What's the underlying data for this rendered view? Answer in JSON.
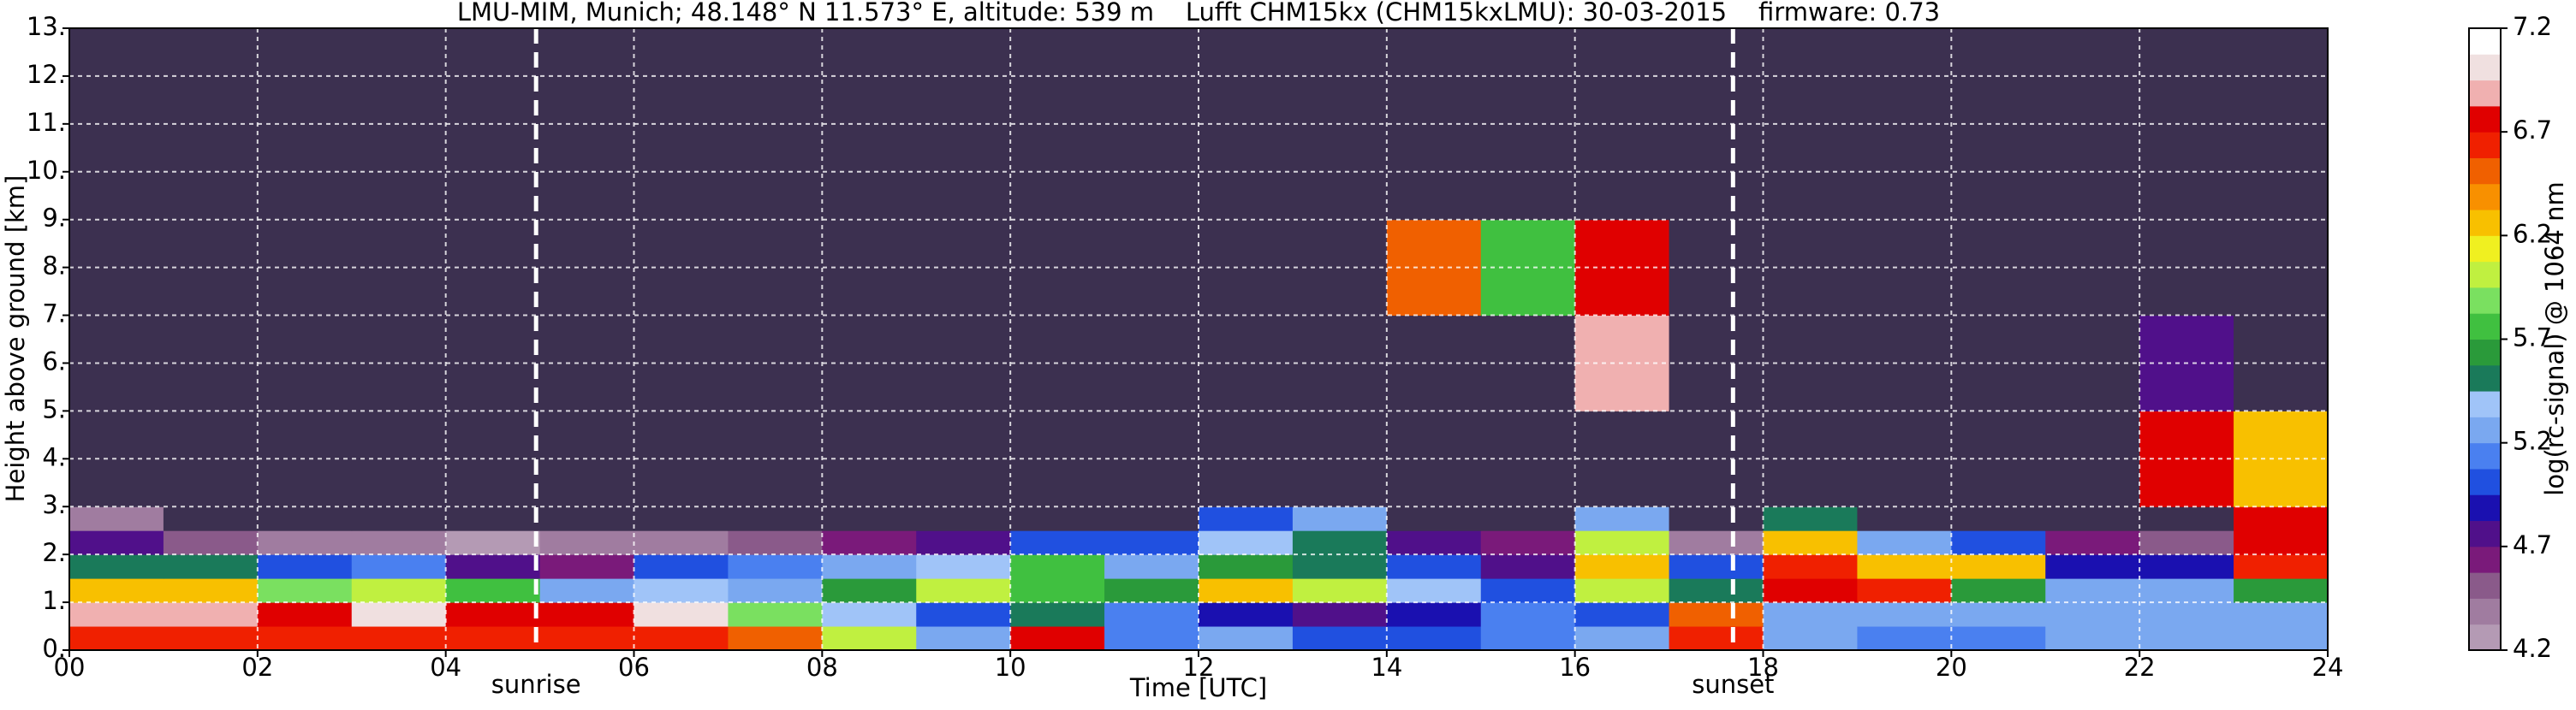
{
  "chart_data": {
    "type": "heatmap",
    "title": "LMU-MIM, Munich; 48.148° N 11.573° E, altitude: 539 m    Lufft CHM15kx (CHM15kxLMU): 30-03-2015    firmware: 0.73",
    "x_label": "Time [UTC]",
    "y_label": "Height above ground [km]",
    "colorbar_label": "log(rc-signal) @ 1064 nm",
    "xlim": [
      0,
      24
    ],
    "xticks": [
      {
        "value": 0,
        "label": "00"
      },
      {
        "value": 2,
        "label": "02"
      },
      {
        "value": 4,
        "label": "04"
      },
      {
        "value": 6,
        "label": "06"
      },
      {
        "value": 8,
        "label": "08"
      },
      {
        "value": 10,
        "label": "10"
      },
      {
        "value": 12,
        "label": "12"
      },
      {
        "value": 14,
        "label": "14"
      },
      {
        "value": 16,
        "label": "16"
      },
      {
        "value": 18,
        "label": "18"
      },
      {
        "value": 20,
        "label": "20"
      },
      {
        "value": 22,
        "label": "22"
      },
      {
        "value": 24,
        "label": "24"
      }
    ],
    "ylim": [
      0,
      13
    ],
    "yticks": [
      {
        "value": 0,
        "label": "0."
      },
      {
        "value": 1,
        "label": "1."
      },
      {
        "value": 2,
        "label": "2."
      },
      {
        "value": 3,
        "label": "3."
      },
      {
        "value": 4,
        "label": "4."
      },
      {
        "value": 5,
        "label": "5."
      },
      {
        "value": 6,
        "label": "6."
      },
      {
        "value": 7,
        "label": "7."
      },
      {
        "value": 8,
        "label": "8."
      },
      {
        "value": 9,
        "label": "9."
      },
      {
        "value": 10,
        "label": "10."
      },
      {
        "value": 11,
        "label": "11."
      },
      {
        "value": 12,
        "label": "12."
      },
      {
        "value": 13,
        "label": "13."
      }
    ],
    "grid": true,
    "markers": [
      {
        "label": "sunrise",
        "value": 4.96
      },
      {
        "label": "sunset",
        "value": 17.68
      }
    ],
    "x_bins": [
      0,
      1,
      2,
      3,
      4,
      5,
      6,
      7,
      8,
      9,
      10,
      11,
      12,
      13,
      14,
      15,
      16,
      17,
      18,
      19,
      20,
      21,
      22,
      23,
      24
    ],
    "y_bins": [
      0,
      0.5,
      1,
      1.5,
      2,
      2.5,
      3,
      5,
      7,
      9,
      13
    ],
    "z": [
      [
        6.6,
        6.6,
        6.6,
        6.6,
        6.6,
        6.6,
        6.6,
        6.5,
        6.0,
        5.3,
        6.8,
        5.1,
        5.2,
        5.0,
        5.0,
        5.1,
        5.2,
        6.6,
        5.2,
        5.1,
        5.1,
        5.2,
        5.2,
        5.2
      ],
      [
        6.9,
        6.9,
        6.8,
        7.0,
        6.7,
        6.8,
        7.0,
        5.9,
        5.4,
        5.0,
        5.5,
        5.1,
        4.9,
        4.8,
        4.9,
        5.1,
        5.0,
        6.5,
        5.3,
        5.2,
        5.2,
        5.3,
        5.2,
        5.3
      ],
      [
        6.3,
        6.2,
        5.9,
        6.0,
        5.8,
        5.3,
        5.4,
        5.3,
        5.6,
        6.0,
        5.8,
        5.6,
        6.2,
        6.0,
        5.4,
        5.0,
        6.0,
        5.5,
        6.8,
        6.6,
        5.6,
        5.2,
        5.2,
        5.6
      ],
      [
        5.5,
        5.5,
        5.0,
        5.1,
        4.7,
        4.6,
        5.0,
        5.1,
        5.2,
        5.4,
        5.7,
        5.3,
        5.6,
        5.5,
        5.0,
        4.7,
        6.3,
        5.0,
        6.6,
        6.3,
        6.2,
        4.9,
        4.9,
        6.6
      ],
      [
        4.8,
        4.5,
        4.4,
        4.4,
        4.3,
        4.4,
        4.4,
        4.5,
        4.6,
        4.7,
        5.0,
        5.0,
        5.4,
        5.5,
        4.8,
        4.6,
        6.0,
        4.4,
        6.2,
        5.3,
        5.0,
        4.6,
        4.5,
        6.7
      ],
      [
        4.4,
        4.1,
        4.1,
        4.1,
        4.1,
        4.1,
        4.1,
        4.1,
        4.1,
        4.1,
        4.1,
        4.1,
        5.0,
        5.2,
        4.1,
        4.1,
        5.3,
        4.1,
        5.5,
        4.1,
        4.1,
        4.1,
        4.1,
        6.8
      ],
      [
        4.1,
        4.1,
        4.1,
        4.1,
        4.1,
        4.1,
        4.1,
        4.1,
        4.1,
        4.1,
        4.1,
        4.1,
        4.1,
        4.1,
        4.1,
        4.1,
        4.1,
        4.1,
        4.1,
        4.1,
        4.1,
        4.1,
        6.8,
        6.2
      ],
      [
        4.1,
        4.1,
        4.1,
        4.1,
        4.1,
        4.1,
        4.1,
        4.1,
        4.1,
        4.1,
        4.1,
        4.1,
        4.1,
        4.1,
        4.1,
        4.1,
        6.9,
        4.1,
        4.1,
        4.1,
        4.1,
        4.1,
        4.8,
        4.1
      ],
      [
        4.1,
        4.1,
        4.1,
        4.1,
        4.1,
        4.1,
        4.1,
        4.1,
        4.1,
        4.1,
        4.1,
        4.1,
        4.1,
        4.1,
        6.5,
        5.8,
        6.8,
        4.1,
        4.1,
        4.1,
        4.1,
        4.1,
        4.1,
        4.1
      ],
      [
        4.1,
        4.1,
        4.1,
        4.1,
        4.1,
        4.1,
        4.1,
        4.1,
        4.1,
        4.1,
        4.1,
        4.1,
        4.1,
        4.1,
        4.1,
        4.1,
        4.1,
        4.1,
        4.1,
        4.1,
        4.1,
        4.1,
        4.1,
        4.1
      ]
    ],
    "zlim": [
      4.2,
      7.2
    ],
    "zticks": [
      4.2,
      4.7,
      5.2,
      5.7,
      6.2,
      6.7,
      7.2
    ],
    "colors": [
      "#b49ab4",
      "#a07ca0",
      "#8a5a8a",
      "#7a1a7a",
      "#50108a",
      "#1a10b0",
      "#2050e0",
      "#4a80f0",
      "#7aa8f0",
      "#a0c4f8",
      "#1a7a5a",
      "#2a9a3a",
      "#40c040",
      "#7ae060",
      "#c0f040",
      "#f0f020",
      "#f8c000",
      "#f89000",
      "#f06000",
      "#f02000",
      "#e00000",
      "#f0b0b0",
      "#f0e0e0",
      "#ffffff"
    ],
    "under_color": "#3c3050"
  }
}
